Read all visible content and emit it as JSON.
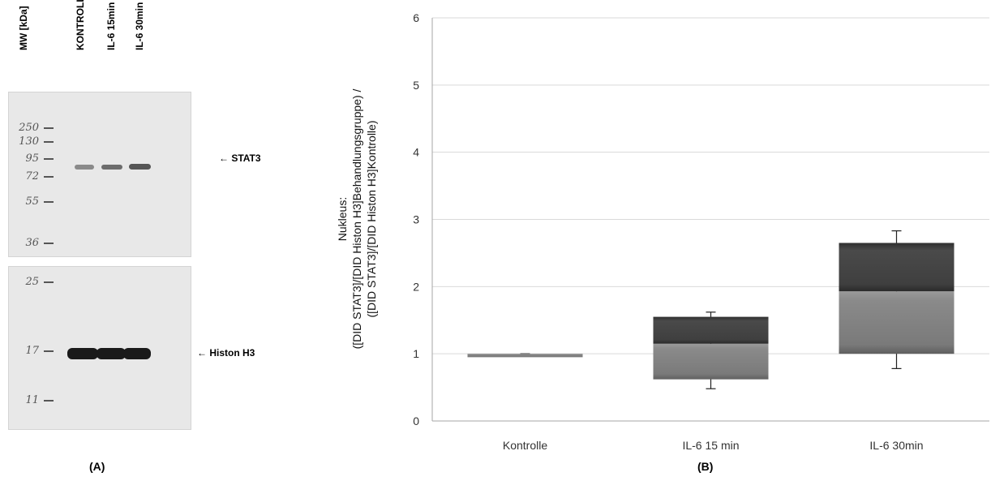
{
  "panel_a": {
    "caption": "(A)",
    "column_labels": [
      "MW [kDa]",
      "KONTROLLE",
      "IL-6 15min",
      "IL-6 30min"
    ],
    "upper_markers": [
      "250",
      "130",
      "95",
      "72",
      "55",
      "36"
    ],
    "lower_markers": [
      "25",
      "17",
      "11"
    ],
    "stat3_label": "← STAT3",
    "histon_label": "← Histon H3"
  },
  "chart_data": {
    "type": "bar",
    "caption": "(B)",
    "ylabel_lines": [
      "Nukleus:",
      "([DID STAT3]/[DID Histon H3]Behandlungsgruppe) /",
      "([DID STAT3]/[DID Histon H3]Kontrolle)"
    ],
    "ylim": [
      0,
      6
    ],
    "yticks": [
      0,
      1,
      2,
      3,
      4,
      5,
      6
    ],
    "categories": [
      "Kontrolle",
      "IL-6 15 min",
      "IL-6 30min"
    ],
    "boxes": [
      {
        "low": 0.95,
        "mid": 1.0,
        "high": 1.0,
        "whisker_low": 1.0,
        "whisker_high": 1.0
      },
      {
        "low": 0.62,
        "mid": 1.15,
        "high": 1.55,
        "whisker_low": 0.48,
        "whisker_high": 1.62
      },
      {
        "low": 1.0,
        "mid": 1.93,
        "high": 2.65,
        "whisker_low": 0.78,
        "whisker_high": 2.83
      }
    ],
    "grid": true,
    "colors": {
      "upper_box": "#3f3f3f",
      "lower_box": "#7f7f7f",
      "grid": "#d9d9d9",
      "axis": "#a6a6a6"
    }
  }
}
